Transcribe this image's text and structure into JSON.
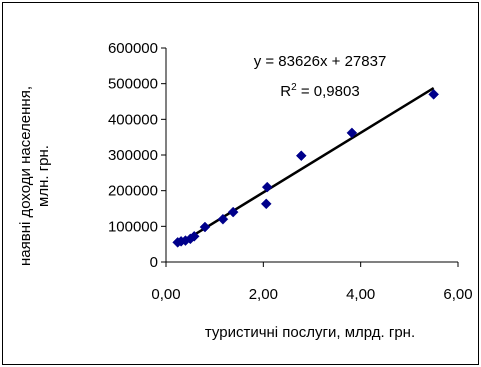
{
  "chart_data": {
    "type": "scatter",
    "title": "",
    "xlabel": "туристичні послуги, млрд. грн.",
    "ylabel_line1": "наявні доходи населення,",
    "ylabel_line2": "млн. грн.",
    "xlim": [
      0,
      6
    ],
    "ylim": [
      0,
      600000
    ],
    "x_ticks": [
      0,
      2,
      4,
      6
    ],
    "x_tick_labels": [
      "0,00",
      "2,00",
      "4,00",
      "6,00"
    ],
    "y_ticks": [
      0,
      100000,
      200000,
      300000,
      400000,
      500000,
      600000
    ],
    "y_tick_labels": [
      "0",
      "100000",
      "200000",
      "300000",
      "400000",
      "500000",
      "600000"
    ],
    "grid": false,
    "marker": "diamond",
    "marker_color": "#00008b",
    "trendline_color": "#000000",
    "series": [
      {
        "points": [
          [
            0.24,
            55000
          ],
          [
            0.31,
            58000
          ],
          [
            0.4,
            60000
          ],
          [
            0.5,
            65000
          ],
          [
            0.58,
            72000
          ],
          [
            0.8,
            98000
          ],
          [
            1.17,
            120000
          ],
          [
            1.38,
            140000
          ],
          [
            2.06,
            163000
          ],
          [
            2.08,
            210000
          ],
          [
            2.78,
            298000
          ],
          [
            3.82,
            362000
          ],
          [
            5.5,
            470000
          ]
        ]
      }
    ],
    "trendline": {
      "slope": 83626,
      "intercept": 27837,
      "x_range": [
        0.24,
        5.5
      ]
    },
    "annotations": {
      "equation": "y = 83626x + 27837",
      "r2_prefix": "R",
      "r2_sup": "2",
      "r2_value": " = 0,9803"
    }
  }
}
